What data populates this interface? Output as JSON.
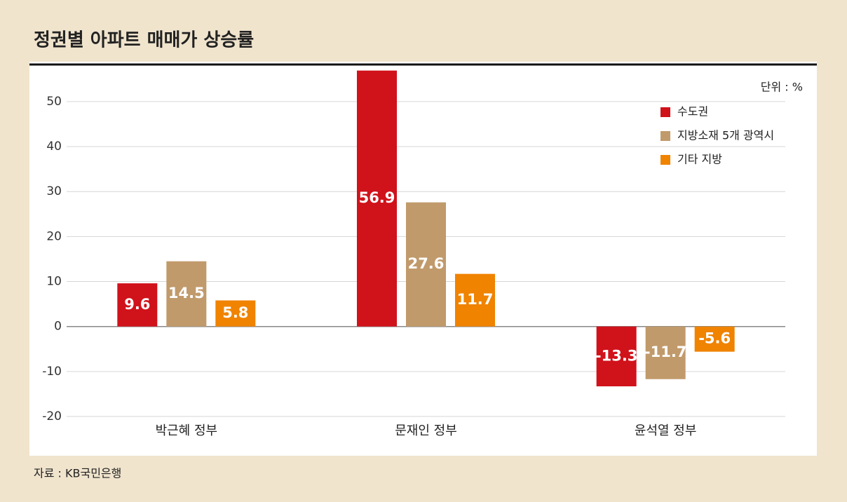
{
  "chart_data": {
    "type": "bar",
    "title": "정권별 아파트 매매가 상승률",
    "unit_label": "단위 : %",
    "source": "자료 : KB국민은행",
    "categories": [
      "박근혜 정부",
      "문재인 정부",
      "윤석열 정부"
    ],
    "series": [
      {
        "name": "수도권",
        "color": "#d0121b",
        "values": [
          9.6,
          56.9,
          -13.3
        ]
      },
      {
        "name": "지방소재 5개 광역시",
        "color": "#c19a6b",
        "values": [
          14.5,
          27.6,
          -11.7
        ]
      },
      {
        "name": "기타 지방",
        "color": "#f08300",
        "values": [
          5.8,
          11.7,
          -5.6
        ]
      }
    ],
    "ylim": [
      -20,
      57
    ],
    "yticks": [
      -20,
      -10,
      0,
      10,
      20,
      30,
      40,
      50
    ],
    "grid": true,
    "legend": "upper right"
  }
}
